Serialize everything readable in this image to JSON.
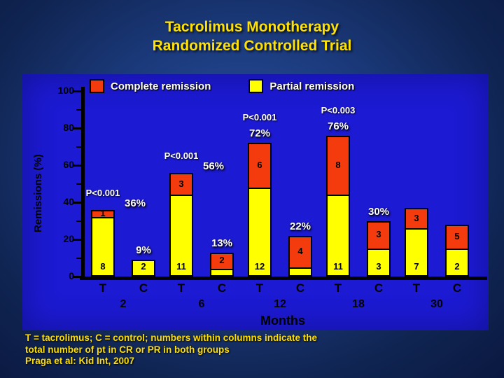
{
  "slide": {
    "title_line1": "Tacrolimus Monotherapy",
    "title_line2": "Randomized Controlled Trial",
    "title_color": "#ffe103",
    "caption_line1": "T = tacrolimus; C = control; numbers within columns indicate the",
    "caption_line2": "total number of pt in CR or PR in both groups",
    "caption_line3": "Praga et al: Kid Int, 2007",
    "caption_color": "#ffdf00"
  },
  "chart_data": {
    "type": "bar",
    "stacked": true,
    "title": "Tacrolimus Monotherapy Randomized Controlled Trial",
    "ylabel": "Remissions (%)",
    "xlabel": "Months",
    "ylim": [
      0,
      100
    ],
    "yticks": [
      0,
      20,
      40,
      60,
      80,
      100
    ],
    "grid": false,
    "legend_position": "top",
    "legend": [
      {
        "label": "Complete remission",
        "color": "#f43b0e"
      },
      {
        "label": "Partial remission",
        "color": "#ffff00"
      }
    ],
    "colors": {
      "complete": "#f43b0e",
      "partial": "#ffff00",
      "panel": "#1c1ad2",
      "axis": "#000000",
      "label_text": "#ffffff"
    },
    "groups": [
      {
        "month": "2",
        "bars": [
          {
            "arm": "T",
            "complete_n": "1",
            "partial_n": "8",
            "complete_pct": 4,
            "partial_pct": 32,
            "total_pct": 36,
            "pct_label": "36%",
            "p_label": "P<0.001",
            "pct_dx": 46
          },
          {
            "arm": "C",
            "complete_n": "",
            "partial_n": "2",
            "complete_pct": 0,
            "partial_pct": 9,
            "total_pct": 9,
            "pct_label": "9%",
            "p_label": "",
            "pct_dx": 0
          }
        ]
      },
      {
        "month": "6",
        "bars": [
          {
            "arm": "T",
            "complete_n": "3",
            "partial_n": "11",
            "complete_pct": 12,
            "partial_pct": 44,
            "total_pct": 56,
            "pct_label": "56%",
            "p_label": "P<0.001",
            "pct_dx": 46
          },
          {
            "arm": "C",
            "complete_n": "2",
            "partial_n": "",
            "complete_pct": 9,
            "partial_pct": 4,
            "total_pct": 13,
            "pct_label": "13%",
            "p_label": "",
            "pct_dx": 0
          }
        ]
      },
      {
        "month": "12",
        "bars": [
          {
            "arm": "T",
            "complete_n": "6",
            "partial_n": "12",
            "complete_pct": 24,
            "partial_pct": 48,
            "total_pct": 72,
            "pct_label": "72%",
            "p_label": "P<0.001",
            "pct_dx": 0
          },
          {
            "arm": "C",
            "complete_n": "4",
            "partial_n": "",
            "complete_pct": 17,
            "partial_pct": 5,
            "total_pct": 22,
            "pct_label": "22%",
            "p_label": "",
            "pct_dx": 0
          }
        ]
      },
      {
        "month": "18",
        "bars": [
          {
            "arm": "T",
            "complete_n": "8",
            "partial_n": "11",
            "complete_pct": 32,
            "partial_pct": 44,
            "total_pct": 76,
            "pct_label": "76%",
            "p_label": "P<0.003",
            "pct_dx": 0
          },
          {
            "arm": "C",
            "complete_n": "3",
            "partial_n": "3",
            "complete_pct": 15,
            "partial_pct": 15,
            "total_pct": 30,
            "pct_label": "30%",
            "p_label": "",
            "pct_dx": 0
          }
        ]
      },
      {
        "month": "30",
        "bars": [
          {
            "arm": "T",
            "complete_n": "3",
            "partial_n": "7",
            "complete_pct": 11,
            "partial_pct": 26,
            "total_pct": 37,
            "pct_label": "",
            "p_label": "",
            "pct_dx": 0
          },
          {
            "arm": "C",
            "complete_n": "5",
            "partial_n": "2",
            "complete_pct": 13,
            "partial_pct": 15,
            "total_pct": 28,
            "pct_label": "",
            "p_label": "",
            "pct_dx": 0
          }
        ]
      }
    ]
  }
}
